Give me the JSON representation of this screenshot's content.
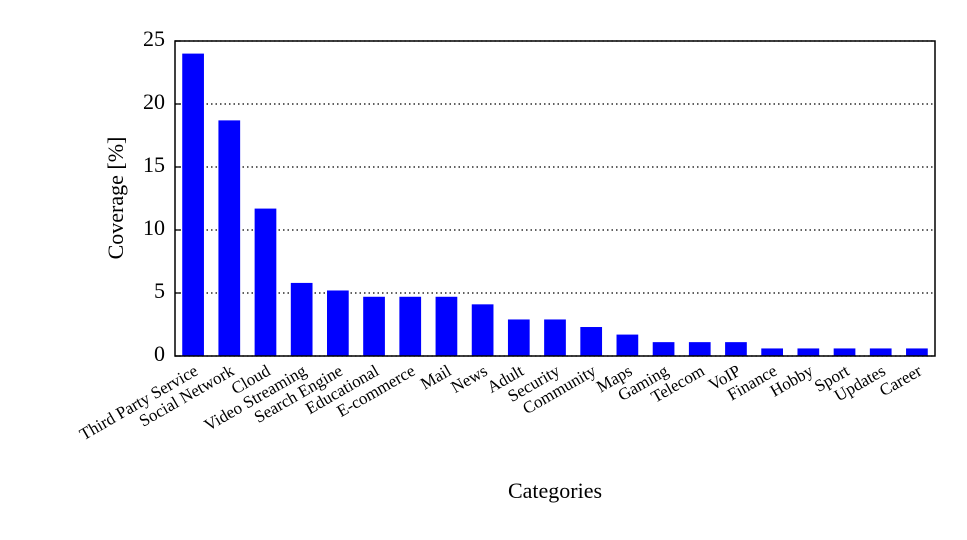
{
  "chart_data": {
    "type": "bar",
    "x_label": "Categories",
    "y_label": "Coverage [%]",
    "categories": [
      "Third Party Service",
      "Social Network",
      "Cloud",
      "Video Streaming",
      "Search Engine",
      "Educational",
      "E-commerce",
      "Mail",
      "News",
      "Adult",
      "Security",
      "Community",
      "Maps",
      "Gaming",
      "Telecom",
      "VoIP",
      "Finance",
      "Hobby",
      "Sport",
      "Updates",
      "Career"
    ],
    "values": [
      24,
      18.7,
      11.7,
      5.8,
      5.2,
      4.7,
      4.7,
      4.7,
      4.1,
      2.9,
      2.9,
      2.3,
      1.7,
      1.1,
      1.1,
      1.1,
      0.6,
      0.6,
      0.6,
      0.6,
      0.6
    ],
    "color": "#0000ff",
    "ylim": [
      0,
      25
    ],
    "yticks": [
      0,
      5,
      10,
      15,
      20,
      25
    ],
    "grid": true
  }
}
